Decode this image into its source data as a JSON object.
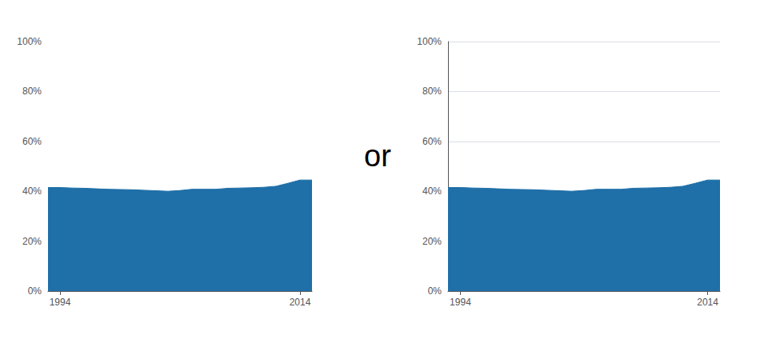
{
  "chart_data": [
    {
      "type": "area",
      "x": [
        1993,
        1994,
        1995,
        1996,
        1997,
        1998,
        1999,
        2000,
        2001,
        2002,
        2003,
        2004,
        2005,
        2006,
        2007,
        2008,
        2009,
        2010,
        2011,
        2012,
        2013,
        2014,
        2015
      ],
      "values": [
        0.415,
        0.415,
        0.413,
        0.412,
        0.41,
        0.408,
        0.407,
        0.406,
        0.404,
        0.402,
        0.4,
        0.403,
        0.408,
        0.408,
        0.408,
        0.412,
        0.413,
        0.414,
        0.416,
        0.42,
        0.432,
        0.445,
        0.445
      ],
      "color": "#1f6fa8",
      "xlim": [
        1993,
        2015
      ],
      "xticks": [
        1994,
        2014
      ],
      "ylim": [
        0,
        1.0
      ],
      "yticks": [
        {
          "value": 0.0,
          "label": "0%"
        },
        {
          "value": 0.2,
          "label": "20%"
        },
        {
          "value": 0.4,
          "label": "40%"
        },
        {
          "value": 0.6,
          "label": "60%"
        },
        {
          "value": 0.8,
          "label": "80%"
        },
        {
          "value": 1.0,
          "label": "100%"
        }
      ],
      "grid": false
    },
    {
      "type": "area",
      "x": [
        1993,
        1994,
        1995,
        1996,
        1997,
        1998,
        1999,
        2000,
        2001,
        2002,
        2003,
        2004,
        2005,
        2006,
        2007,
        2008,
        2009,
        2010,
        2011,
        2012,
        2013,
        2014,
        2015
      ],
      "values": [
        0.415,
        0.415,
        0.413,
        0.412,
        0.41,
        0.408,
        0.407,
        0.406,
        0.404,
        0.402,
        0.4,
        0.403,
        0.408,
        0.408,
        0.408,
        0.412,
        0.413,
        0.414,
        0.416,
        0.42,
        0.432,
        0.445,
        0.445
      ],
      "color": "#1f6fa8",
      "xlim": [
        1993,
        2015
      ],
      "xticks": [
        1994,
        2014
      ],
      "ylim": [
        0,
        1.0
      ],
      "yticks": [
        {
          "value": 0.0,
          "label": "0%"
        },
        {
          "value": 0.2,
          "label": "20%"
        },
        {
          "value": 0.4,
          "label": "40%"
        },
        {
          "value": 0.6,
          "label": "60%"
        },
        {
          "value": 0.8,
          "label": "80%"
        },
        {
          "value": 1.0,
          "label": "100%"
        }
      ],
      "grid": true
    }
  ],
  "annotation": "or"
}
